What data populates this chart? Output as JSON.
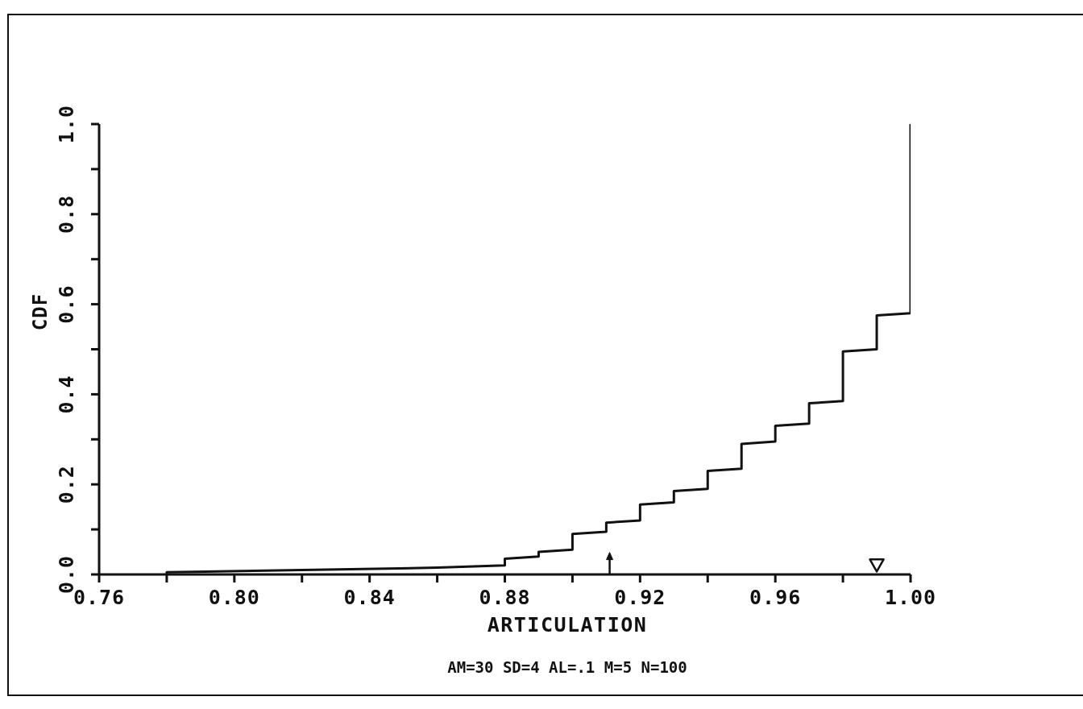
{
  "chart_data": {
    "type": "line",
    "xlabel": "ARTICULATION",
    "ylabel": "CDF",
    "annotations": [
      "AM=30 SD=4 AL=.1 M=5 N=100"
    ],
    "xlim": [
      0.76,
      1.0
    ],
    "xticks": [
      {
        "value": 0.76,
        "label": "0.76"
      },
      {
        "value": 0.78,
        "label": null
      },
      {
        "value": 0.8,
        "label": "0.80"
      },
      {
        "value": 0.82,
        "label": null
      },
      {
        "value": 0.84,
        "label": "0.84"
      },
      {
        "value": 0.86,
        "label": null
      },
      {
        "value": 0.88,
        "label": "0.88"
      },
      {
        "value": 0.9,
        "label": null
      },
      {
        "value": 0.92,
        "label": "0.92"
      },
      {
        "value": 0.94,
        "label": null
      },
      {
        "value": 0.96,
        "label": "0.96"
      },
      {
        "value": 0.98,
        "label": null
      },
      {
        "value": 1.0,
        "label": "1.00"
      }
    ],
    "ylim": [
      0,
      1.0
    ],
    "yticks": [
      {
        "value": 0,
        "label": "0.0"
      },
      {
        "value": 0.1,
        "label": null
      },
      0.2,
      {
        "value": 0.3,
        "label": null
      },
      0.4,
      {
        "value": 0.5,
        "label": null
      },
      0.6,
      {
        "value": 0.7,
        "label": null
      },
      0.8,
      {
        "value": 0.9,
        "label": null
      },
      {
        "value": 1.0,
        "label": "1.0"
      }
    ],
    "series": [
      {
        "color": "#111111",
        "marker": "none",
        "x": [
          0.78,
          0.78,
          0.82,
          0.86,
          0.88,
          0.88,
          0.89,
          0.89,
          0.9,
          0.9,
          0.91,
          0.91,
          0.92,
          0.92,
          0.93,
          0.93,
          0.94,
          0.94,
          0.95,
          0.95,
          0.96,
          0.96,
          0.97,
          0.97,
          0.98,
          0.98,
          0.99,
          0.99,
          1.0,
          1.0
        ],
        "values": [
          0,
          0.005,
          0.01,
          0.015,
          0.02,
          0.035,
          0.04,
          0.05,
          0.055,
          0.09,
          0.095,
          0.115,
          0.12,
          0.155,
          0.16,
          0.185,
          0.19,
          0.23,
          0.235,
          0.29,
          0.295,
          0.33,
          0.335,
          0.38,
          0.385,
          0.495,
          0.5,
          0.575,
          0.58,
          1.0
        ]
      },
      {
        "type": "scatter",
        "marker": "triangle",
        "color": "#111111",
        "x": [
          0.99
        ],
        "values": [
          0.02
        ]
      },
      {
        "type": "scatter",
        "color": "#111111",
        "x": [
          0.911
        ],
        "values": [
          0.04
        ]
      }
    ]
  }
}
